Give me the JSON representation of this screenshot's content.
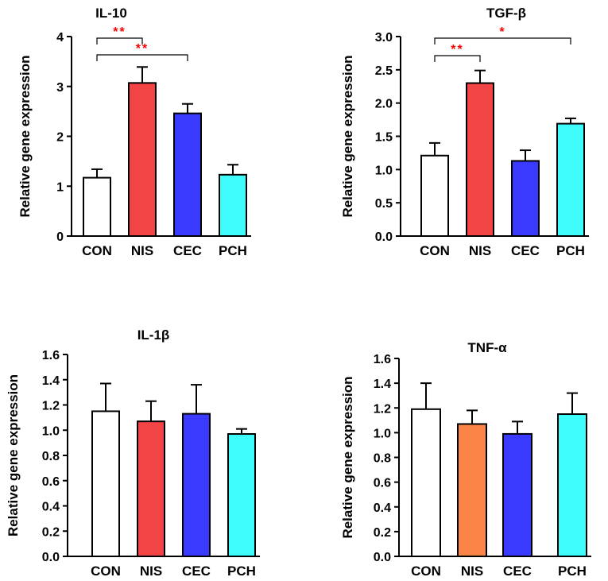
{
  "chart_data": [
    {
      "type": "bar",
      "title": "IL-10",
      "ylabel": "Relative gene expression",
      "xlabel": "",
      "categories": [
        "CON",
        "NIS",
        "CEC",
        "PCH"
      ],
      "values": [
        1.17,
        3.07,
        2.46,
        1.23
      ],
      "errors": [
        0.17,
        0.32,
        0.19,
        0.2
      ],
      "colors": [
        "#ffffff",
        "#f24444",
        "#3a3aff",
        "#3ffcfc"
      ],
      "ylim": [
        0,
        4
      ],
      "yticks": [
        "0",
        "1",
        "2",
        "3",
        "4"
      ],
      "significance": [
        {
          "from": 0,
          "to": 1,
          "label": "**"
        },
        {
          "from": 0,
          "to": 2,
          "label": "**"
        }
      ]
    },
    {
      "type": "bar",
      "title": "TGF-β",
      "ylabel": "Relative gene expression",
      "xlabel": "",
      "categories": [
        "CON",
        "NIS",
        "CEC",
        "PCH"
      ],
      "values": [
        1.21,
        2.3,
        1.13,
        1.69
      ],
      "errors": [
        0.19,
        0.19,
        0.16,
        0.08
      ],
      "colors": [
        "#ffffff",
        "#f24444",
        "#3a3aff",
        "#3ffcfc"
      ],
      "ylim": [
        0,
        3.0
      ],
      "yticks": [
        "0.0",
        "0.5",
        "1.0",
        "1.5",
        "2.0",
        "2.5",
        "3.0"
      ],
      "significance": [
        {
          "from": 0,
          "to": 1,
          "label": "**"
        },
        {
          "from": 0,
          "to": 3,
          "label": "*"
        }
      ]
    },
    {
      "type": "bar",
      "title": "IL-1β",
      "ylabel": "Relative gene expression",
      "xlabel": "",
      "categories": [
        "CON",
        "NIS",
        "CEC",
        "PCH"
      ],
      "values": [
        1.15,
        1.07,
        1.13,
        0.97
      ],
      "errors": [
        0.22,
        0.16,
        0.23,
        0.04
      ],
      "colors": [
        "#ffffff",
        "#f24444",
        "#3a3aff",
        "#3ffcfc"
      ],
      "ylim": [
        0,
        1.6
      ],
      "yticks": [
        "0.0",
        "0.2",
        "0.4",
        "0.6",
        "0.8",
        "1.0",
        "1.2",
        "1.4",
        "1.6"
      ],
      "significance": []
    },
    {
      "type": "bar",
      "title": "TNF-α",
      "ylabel": "Relative gene expression",
      "xlabel": "",
      "categories": [
        "CON",
        "NIS",
        "CEC",
        "PCH"
      ],
      "values": [
        1.19,
        1.07,
        0.99,
        1.15
      ],
      "errors": [
        0.21,
        0.11,
        0.1,
        0.17
      ],
      "colors": [
        "#ffffff",
        "#fb8547",
        "#3a3aff",
        "#3ffcfc"
      ],
      "ylim": [
        0,
        1.6
      ],
      "yticks": [
        "0.0",
        "0.2",
        "0.4",
        "0.6",
        "0.8",
        "1.0",
        "1.2",
        "1.4",
        "1.6"
      ],
      "significance": []
    }
  ]
}
